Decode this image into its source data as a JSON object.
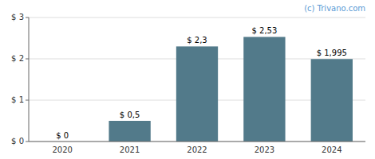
{
  "chart_data": {
    "type": "bar",
    "categories": [
      "2020",
      "2021",
      "2022",
      "2023",
      "2024"
    ],
    "values": [
      0.0,
      0.5,
      2.3,
      2.53,
      1.995
    ],
    "value_labels": [
      "$ 0",
      "$ 0,5",
      "$ 2,3",
      "$ 2,53",
      "$ 1,995"
    ],
    "data_labels": true,
    "color": "#527a8a",
    "ylim": [
      0,
      3.0
    ],
    "yticks": [
      {
        "value": 0,
        "label": "$ 0"
      },
      {
        "value": 1,
        "label": "$ 1"
      },
      {
        "value": 2,
        "label": "$ 2"
      },
      {
        "value": 3,
        "label": "$ 3"
      }
    ],
    "grid": true,
    "annotations": [
      {
        "text": "(c) Trivano.com",
        "color": "#5b9bd5"
      }
    ]
  }
}
